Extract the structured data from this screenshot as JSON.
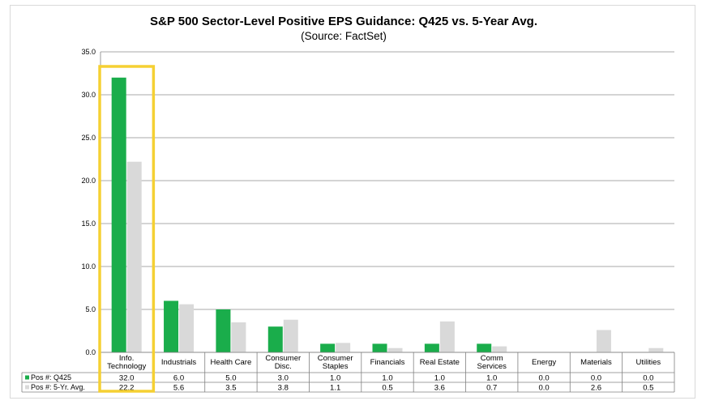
{
  "chart_data": {
    "type": "bar",
    "title": "S&P 500 Sector-Level Positive EPS Guidance: Q425 vs. 5-Year Avg.",
    "subtitle": "(Source: FactSet)",
    "categories": [
      [
        "Info.",
        "Technology"
      ],
      [
        "Industrials"
      ],
      [
        "Health Care"
      ],
      [
        "Consumer",
        "Disc."
      ],
      [
        "Consumer",
        "Staples"
      ],
      [
        "Financials"
      ],
      [
        "Real Estate"
      ],
      [
        "Comm",
        "Services"
      ],
      [
        "Energy"
      ],
      [
        "Materials"
      ],
      [
        "Utilities"
      ]
    ],
    "series": [
      {
        "name": "Pos #: Q425",
        "color": "#1aad4b",
        "values": [
          32.0,
          6.0,
          5.0,
          3.0,
          1.0,
          1.0,
          1.0,
          1.0,
          0.0,
          0.0,
          0.0
        ],
        "labels": [
          "32.0",
          "6.0",
          "5.0",
          "3.0",
          "1.0",
          "1.0",
          "1.0",
          "1.0",
          "0.0",
          "0.0",
          "0.0"
        ]
      },
      {
        "name": "Pos #: 5-Yr. Avg.",
        "color": "#d9d9d9",
        "values": [
          22.2,
          5.6,
          3.5,
          3.8,
          1.1,
          0.5,
          3.6,
          0.7,
          0.0,
          2.6,
          0.5
        ],
        "labels": [
          "22.2",
          "5.6",
          "3.5",
          "3.8",
          "1.1",
          "0.5",
          "3.6",
          "0.7",
          "0.0",
          "2.6",
          "0.5"
        ]
      }
    ],
    "ylim": [
      0,
      35
    ],
    "yticks": [
      "0.0",
      "5.0",
      "10.0",
      "15.0",
      "20.0",
      "25.0",
      "30.0",
      "35.0"
    ],
    "grid": true,
    "legend": "data-table",
    "highlight": {
      "category_index": 0,
      "color": "#f5d033"
    }
  }
}
